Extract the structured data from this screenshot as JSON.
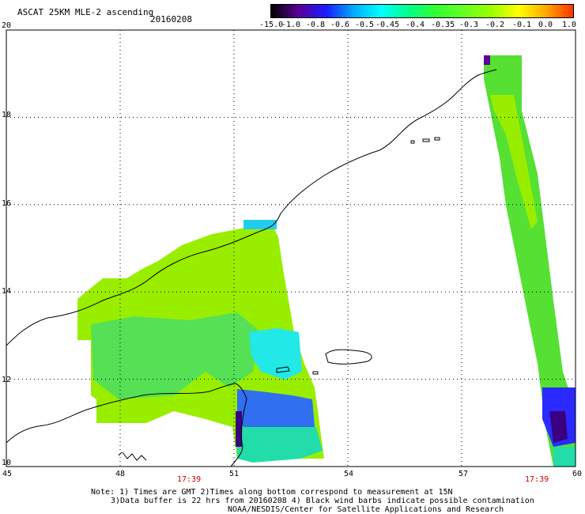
{
  "header": {
    "product": "ASCAT 25KM MLE-2 ascending",
    "date": "20160208"
  },
  "colorbar": {
    "labels": [
      "-15.0",
      "-1.0",
      "-0.8",
      "-0.6",
      "-0.5",
      "-0.45",
      "-0.4",
      "-0.35",
      "-0.3",
      "-0.2",
      "-0.1",
      "0.0",
      "1.0"
    ],
    "colors": [
      "#000000",
      "#5a0098",
      "#1a1aff",
      "#00aaff",
      "#00ffff",
      "#00ff88",
      "#33ff33",
      "#66ff22",
      "#99ff00",
      "#ffff00",
      "#ffaa00",
      "#ff3300"
    ]
  },
  "map": {
    "lon_labels": [
      "45",
      "48",
      "51",
      "54",
      "57",
      "60"
    ],
    "lat_labels": [
      "20",
      "18",
      "16",
      "14",
      "12",
      "10"
    ],
    "lon_range": [
      45,
      60
    ],
    "lat_range": [
      10,
      20
    ],
    "grid_style": "dotted",
    "pass_times": [
      "17:39",
      "17:39"
    ]
  },
  "notes": {
    "line1": "Note: 1) Times are GMT 2)Times along bottom correspond to measurement at 15N",
    "line2": "3)Data buffer is 22 hrs from 20160208 4) Black wind barbs indicate possible contamination",
    "line3": "NOAA/NESDIS/Center for Satellite Applications and Research"
  }
}
